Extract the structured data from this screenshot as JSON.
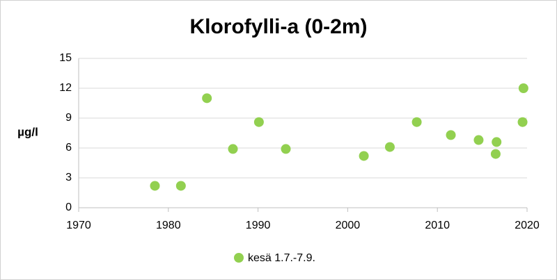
{
  "chart_data": {
    "type": "scatter",
    "title": "Klorofylli-a (0-2m)",
    "y_label": "µg/l",
    "series": [
      {
        "name": "kesä 1.7.-7.9.",
        "color": "#92d050",
        "x": [
          1978.5,
          1981.4,
          1984.3,
          1987.2,
          1990.1,
          1993.1,
          2001.8,
          2004.7,
          2007.7,
          2011.5,
          2014.6,
          2016.5,
          2016.6,
          2019.5,
          2019.6
        ],
        "values": [
          2.2,
          2.2,
          11.0,
          5.9,
          8.6,
          5.9,
          5.2,
          6.1,
          8.6,
          7.3,
          6.8,
          5.4,
          6.6,
          8.6,
          12.0
        ]
      }
    ],
    "xlim": [
      1970,
      2020
    ],
    "xticks": [
      1970,
      1980,
      1990,
      2000,
      2010,
      2020
    ],
    "ylim": [
      0,
      15
    ],
    "yticks": [
      0,
      3,
      6,
      9,
      12,
      15
    ],
    "grid": true,
    "legend": "bottom"
  }
}
